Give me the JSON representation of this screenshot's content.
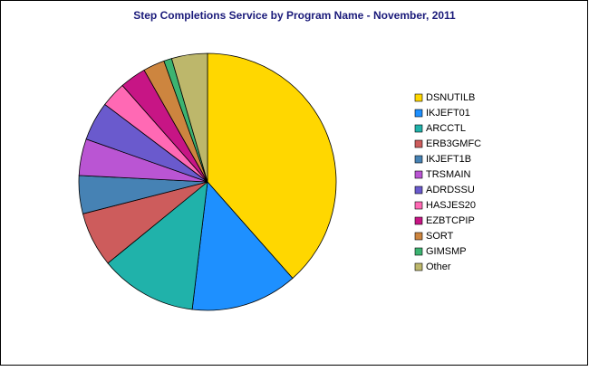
{
  "chart_data": {
    "type": "pie",
    "title": "Step Completions Service by Program Name - November, 2011",
    "categories": [
      "DSNUTILB",
      "IKJEFT01",
      "ARCCTL",
      "ERB3GMFC",
      "IKJEFT1B",
      "TRSMAIN",
      "ADRDSSU",
      "HASJES20",
      "EZBTCPIP",
      "SORT",
      "GIMSMP",
      "Other"
    ],
    "values": [
      38.5,
      13.4,
      12.2,
      6.9,
      4.8,
      4.6,
      4.9,
      3.2,
      3.3,
      2.7,
      1.0,
      4.5
    ],
    "colors": [
      "#FFD700",
      "#1E90FF",
      "#20B2AA",
      "#CD5C5C",
      "#4682B4",
      "#BA55D3",
      "#6A5ACD",
      "#FF69B4",
      "#C71585",
      "#CD853F",
      "#3CB371",
      "#BDB76B"
    ],
    "legend": "right"
  }
}
